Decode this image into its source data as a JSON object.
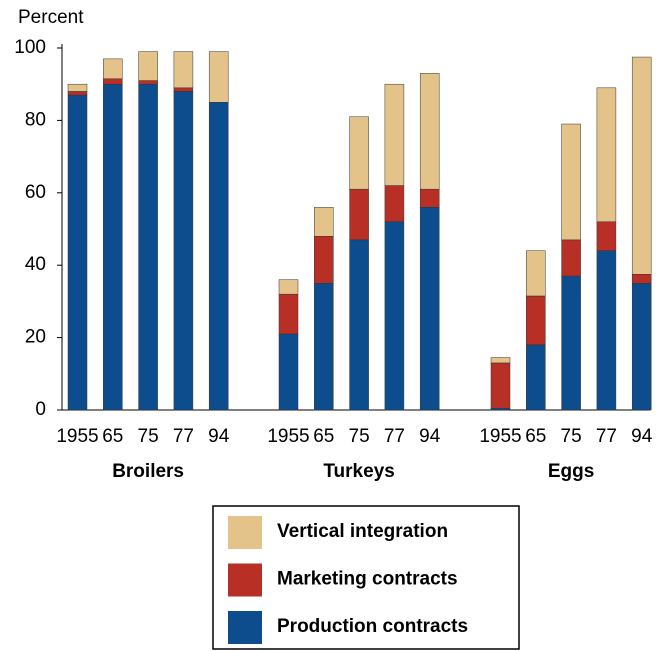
{
  "chart_data": {
    "type": "stacked_bar",
    "y_label": "Percent",
    "groups": [
      "Broilers",
      "Turkeys",
      "Eggs"
    ],
    "categories": [
      "1955",
      "65",
      "75",
      "77",
      "94",
      "1955",
      "65",
      "75",
      "77",
      "94",
      "1955",
      "65",
      "75",
      "77",
      "94"
    ],
    "series": [
      {
        "name": "Vertical integration",
        "color": "#e4c38a",
        "values": [
          2,
          5.5,
          8,
          10,
          14,
          4,
          8,
          20,
          28,
          32,
          1.5,
          12.5,
          32,
          37,
          60
        ]
      },
      {
        "name": "Marketing contracts",
        "color": "#b82f25",
        "values": [
          1,
          1.5,
          1,
          1,
          0,
          11,
          13,
          14,
          10,
          5,
          12.5,
          13.5,
          10,
          8,
          2.5
        ]
      },
      {
        "name": "Production contracts",
        "color": "#0d4d8e",
        "values": [
          87,
          90,
          90,
          88,
          85,
          21,
          35,
          47,
          52,
          56,
          0.5,
          18,
          37,
          44,
          35
        ]
      }
    ],
    "ylim": [
      0,
      100
    ],
    "yticks": [
      0,
      20,
      40,
      60,
      80,
      100
    ]
  }
}
